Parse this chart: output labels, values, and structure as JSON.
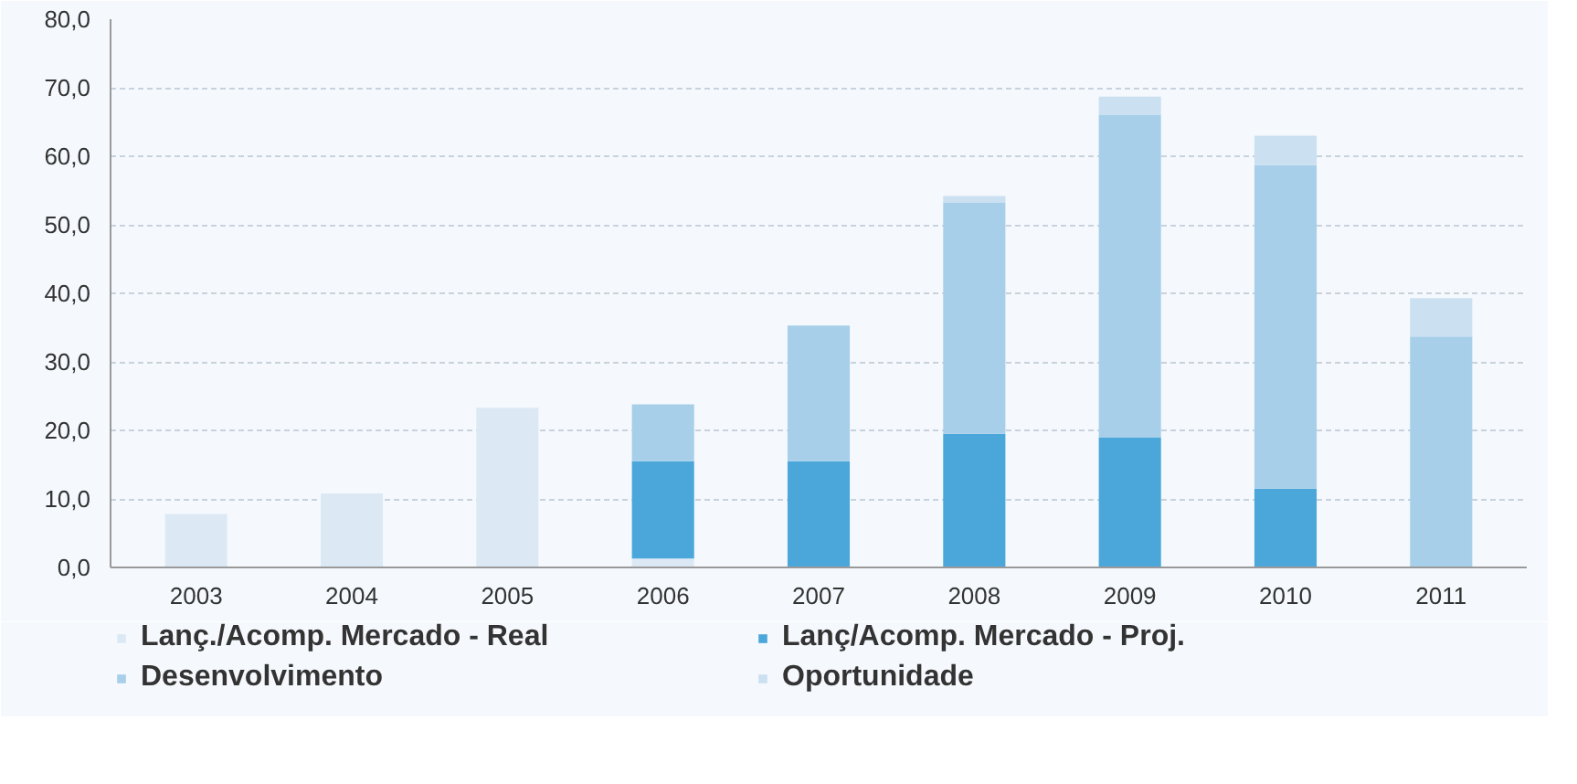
{
  "chart_data": {
    "type": "bar",
    "stacked": true,
    "categories": [
      "2003",
      "2004",
      "2005",
      "2006",
      "2007",
      "2008",
      "2009",
      "2010",
      "2011"
    ],
    "series": [
      {
        "name": "Lanç./Acomp. Mercado - Real",
        "color": "#dce9f5",
        "values": [
          7.8,
          10.8,
          23.3,
          1.3,
          0,
          0,
          0,
          0,
          0
        ]
      },
      {
        "name": "Lanç/Acomp. Mercado - Proj.",
        "color": "#4ba7d9",
        "values": [
          0,
          0,
          0,
          14.2,
          15.5,
          19.5,
          19.0,
          11.5,
          0
        ]
      },
      {
        "name": "Desenvolvimento",
        "color": "#a8cfe9",
        "values": [
          0,
          0,
          0,
          8.3,
          19.8,
          33.7,
          47.0,
          47.2,
          33.7
        ]
      },
      {
        "name": "Oportunidade",
        "color": "#cbe0f1",
        "values": [
          0,
          0,
          0,
          0,
          0,
          1.0,
          2.7,
          4.3,
          5.6
        ]
      }
    ],
    "ylim": [
      0,
      80
    ],
    "yticks": [
      {
        "value": 0,
        "label": "0,0"
      },
      {
        "value": 10,
        "label": "10,0"
      },
      {
        "value": 20,
        "label": "20,0"
      },
      {
        "value": 30,
        "label": "30,0"
      },
      {
        "value": 40,
        "label": "40,0"
      },
      {
        "value": 50,
        "label": "50,0"
      },
      {
        "value": 60,
        "label": "60,0"
      },
      {
        "value": 70,
        "label": "70,0"
      },
      {
        "value": 80,
        "label": "80,0"
      }
    ],
    "grid": "y",
    "legend": "bottom"
  }
}
